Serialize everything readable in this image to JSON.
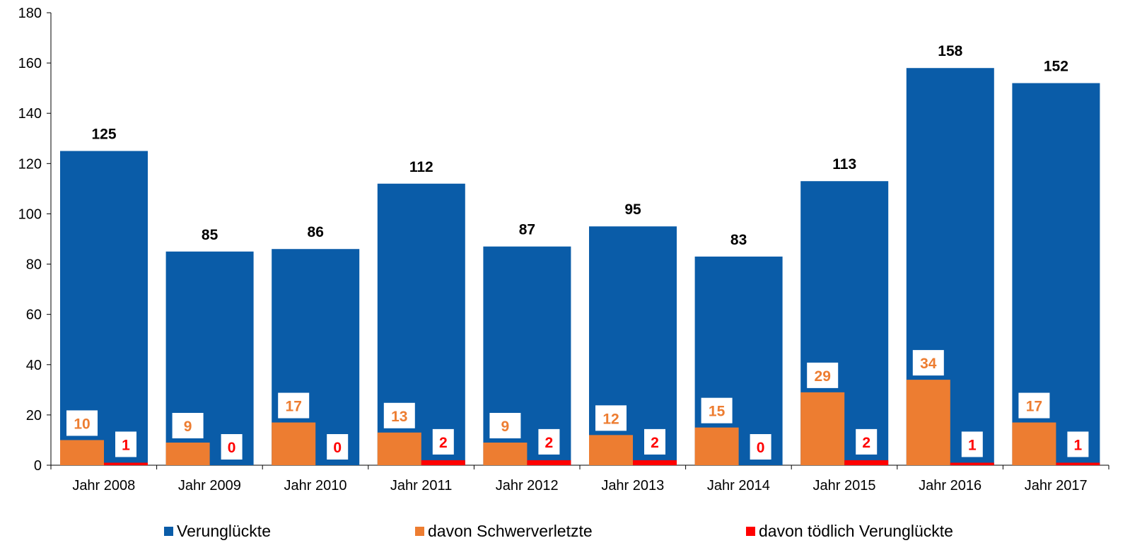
{
  "chart_data": {
    "type": "bar",
    "categories": [
      "Jahr 2008",
      "Jahr 2009",
      "Jahr 2010",
      "Jahr 2011",
      "Jahr 2012",
      "Jahr 2013",
      "Jahr 2014",
      "Jahr 2015",
      "Jahr 2016",
      "Jahr 2017"
    ],
    "series": [
      {
        "name": "Verunglückte",
        "values": [
          125,
          85,
          86,
          112,
          87,
          95,
          83,
          113,
          158,
          152
        ],
        "color": "#0A5CA8"
      },
      {
        "name": "davon Schwerverletzte",
        "values": [
          10,
          9,
          17,
          13,
          9,
          12,
          15,
          29,
          34,
          17
        ],
        "color": "#ED7D31"
      },
      {
        "name": "davon tödlich Verunglückte",
        "values": [
          1,
          0,
          0,
          2,
          2,
          2,
          0,
          2,
          1,
          1
        ],
        "color": "#FF0000"
      }
    ],
    "ylim": [
      0,
      180
    ],
    "yticks": [
      0,
      20,
      40,
      60,
      80,
      100,
      120,
      140,
      160,
      180
    ],
    "grid": false,
    "legend": "bottom",
    "label_colors": [
      "#000000",
      "#ED7D31",
      "#FF0000"
    ]
  }
}
